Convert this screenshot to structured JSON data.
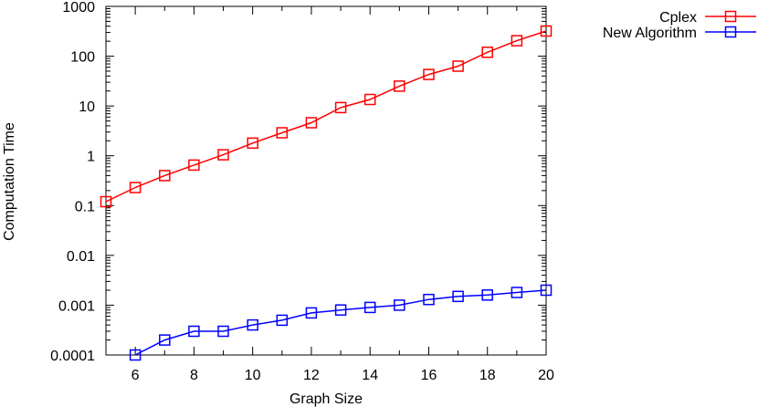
{
  "chart_data": {
    "type": "line",
    "xlabel": "Graph Size",
    "ylabel": "Computation Time",
    "xlim": [
      5,
      20
    ],
    "ylim": [
      0.0001,
      1000
    ],
    "yscale": "log",
    "grid": false,
    "legend_position": "outside-top-right",
    "x_ticks": [
      6,
      8,
      10,
      12,
      14,
      16,
      18,
      20
    ],
    "x_tick_labels": [
      "6",
      "8",
      "10",
      "12",
      "14",
      "16",
      "18",
      "20"
    ],
    "y_ticks": [
      0.0001,
      0.001,
      0.01,
      0.1,
      1,
      10,
      100,
      1000
    ],
    "y_tick_labels": [
      "0.0001",
      "0.001",
      "0.01",
      "0.1",
      "1",
      "10",
      "100",
      "1000"
    ],
    "series": [
      {
        "name": "Cplex",
        "color": "#ff0000",
        "marker": "open-square",
        "x": [
          5,
          6,
          7,
          8,
          9,
          10,
          11,
          12,
          13,
          14,
          15,
          16,
          17,
          18,
          19,
          20
        ],
        "y": [
          0.12,
          0.23,
          0.4,
          0.65,
          1.05,
          1.8,
          2.9,
          4.6,
          9.3,
          13.5,
          25,
          43,
          63,
          120,
          205,
          320
        ]
      },
      {
        "name": "New Algorithm",
        "color": "#0000ff",
        "marker": "open-square",
        "x": [
          6,
          7,
          8,
          9,
          10,
          11,
          12,
          13,
          14,
          15,
          16,
          17,
          18,
          19,
          20
        ],
        "y": [
          0.0001,
          0.0002,
          0.0003,
          0.0003,
          0.0004,
          0.0005,
          0.0007,
          0.0008,
          0.0009,
          0.001,
          0.0013,
          0.0015,
          0.0016,
          0.0018,
          0.002
        ]
      }
    ]
  }
}
